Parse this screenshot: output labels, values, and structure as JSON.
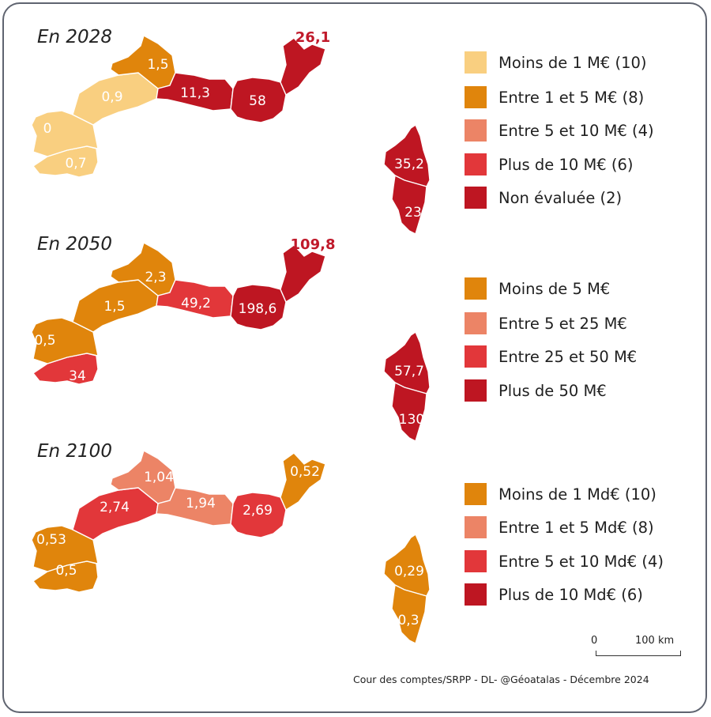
{
  "colors": {
    "light_yellow": "#f9cf80",
    "orange": "#e0850c",
    "salmon": "#ec8466",
    "red": "#e2373a",
    "dark_red": "#be1622",
    "value_label": "#c0192a"
  },
  "maps": [
    {
      "title": "En 2028",
      "values": {
        "w_south": "0,7",
        "w_mid": "0",
        "w_upper": "0,9",
        "w_north": "1,5",
        "center": "11,3",
        "east": "58",
        "far_east": "26,1",
        "corsica_north": "35,2",
        "corsica_south": "23"
      },
      "legend": [
        {
          "label": "Moins de 1 M€  (10)",
          "color": "#f9cf80"
        },
        {
          "label": "Entre 1 et 5 M€ (8)",
          "color": "#e0850c"
        },
        {
          "label": "Entre 5 et 10 M€ (4)",
          "color": "#ec8466"
        },
        {
          "label": "Plus de 10 M€ (6)",
          "color": "#e2373a"
        },
        {
          "label": "Non évaluée (2)",
          "color": "#be1622"
        }
      ]
    },
    {
      "title": "En 2050",
      "values": {
        "w_south": "34",
        "w_mid": "0,5",
        "w_upper": "1,5",
        "w_north": "2,3",
        "center": "49,2",
        "east": "198,6",
        "far_east": "109,8",
        "corsica_north": "57,7",
        "corsica_south": "130"
      },
      "legend": [
        {
          "label": "Moins de 5 M€",
          "color": "#e0850c"
        },
        {
          "label": "Entre 5 et 25 M€",
          "color": "#ec8466"
        },
        {
          "label": "Entre 25 et 50 M€",
          "color": "#e2373a"
        },
        {
          "label": "Plus de 50 M€",
          "color": "#be1622"
        }
      ]
    },
    {
      "title": "En 2100",
      "values": {
        "w_south": "0,5",
        "w_mid": "0,53",
        "w_upper": "2,74",
        "w_north": "1,04",
        "center": "1,94",
        "east": "2,69",
        "far_east": "0,52",
        "corsica_north": "0,29",
        "corsica_south": "0,3"
      },
      "legend": [
        {
          "label": "Moins de 1 Md€  (10)",
          "color": "#e0850c"
        },
        {
          "label": "Entre 1 et 5 Md€ (8)",
          "color": "#ec8466"
        },
        {
          "label": "Entre 5 et 10 Md€ (4)",
          "color": "#e2373a"
        },
        {
          "label": "Plus de 10 Md€ (6)",
          "color": "#be1622"
        }
      ]
    }
  ],
  "scale": {
    "zero": "0",
    "distance": "100 km"
  },
  "source": "Cour des comptes/SRPP - DL- @Géoatalas  - Décembre 2024"
}
